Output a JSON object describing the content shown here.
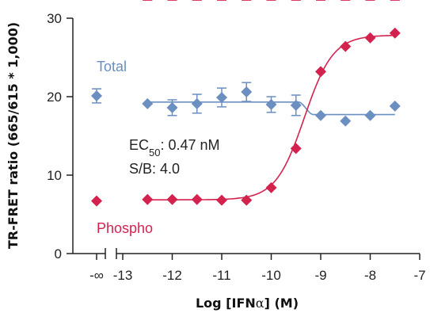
{
  "chart_data": {
    "type": "scatter",
    "title": "",
    "xlabel_prefix": "Log [IFN",
    "xlabel_greek": "α",
    "xlabel_suffix": "] (M)",
    "ylabel": "TR-FRET ratio (665/615 * 1,000)",
    "xlim": [
      -13,
      -7
    ],
    "ylim": [
      0,
      30
    ],
    "x_ticks": [
      "-13",
      "-12",
      "-11",
      "-10",
      "-9",
      "-8",
      "-7"
    ],
    "x_tick_values": [
      -13,
      -12,
      -11,
      -10,
      -9,
      -8,
      -7
    ],
    "x_break_tick": "-∞",
    "y_ticks": [
      "0",
      "10",
      "20",
      "30"
    ],
    "y_tick_values": [
      0,
      10,
      20,
      30
    ],
    "grid": false,
    "series": [
      {
        "name": "Total",
        "color": "#6a8fc0",
        "marker": "diamond",
        "fit": "flat",
        "zero_point": {
          "y": 20.1,
          "err": 0.9
        },
        "points": [
          {
            "x": -12.5,
            "y": 19.1,
            "err": 0
          },
          {
            "x": -12.0,
            "y": 18.6,
            "err": 1.0
          },
          {
            "x": -11.5,
            "y": 19.1,
            "err": 1.2
          },
          {
            "x": -11.0,
            "y": 19.9,
            "err": 1.2
          },
          {
            "x": -10.5,
            "y": 20.6,
            "err": 1.2
          },
          {
            "x": -10.0,
            "y": 19.0,
            "err": 1.0
          },
          {
            "x": -9.5,
            "y": 18.9,
            "err": 1.3
          },
          {
            "x": -9.0,
            "y": 17.6,
            "err": 0
          },
          {
            "x": -8.5,
            "y": 16.9,
            "err": 0
          },
          {
            "x": -8.0,
            "y": 17.6,
            "err": 0
          },
          {
            "x": -7.5,
            "y": 18.8,
            "err": 0
          }
        ]
      },
      {
        "name": "Phospho",
        "color": "#d4224f",
        "marker": "diamond",
        "fit": "sigmoid",
        "bottom": 6.85,
        "top": 27.85,
        "log_ec50": -9.33,
        "hill": 1.5,
        "zero_point": {
          "y": 6.7,
          "err": 0
        },
        "points": [
          {
            "x": -12.5,
            "y": 6.9
          },
          {
            "x": -12.0,
            "y": 6.9
          },
          {
            "x": -11.5,
            "y": 6.9
          },
          {
            "x": -11.0,
            "y": 6.8
          },
          {
            "x": -10.5,
            "y": 6.8
          },
          {
            "x": -10.0,
            "y": 8.4
          },
          {
            "x": -9.5,
            "y": 13.4
          },
          {
            "x": -9.0,
            "y": 23.2
          },
          {
            "x": -8.5,
            "y": 26.4
          },
          {
            "x": -8.0,
            "y": 27.5
          },
          {
            "x": -7.5,
            "y": 28.1
          }
        ]
      }
    ],
    "annotation": {
      "ec_prefix": "EC",
      "ec_sub": "50",
      "ec_value": ": 0.47 nM",
      "sb": "S/B: 4.0"
    }
  }
}
